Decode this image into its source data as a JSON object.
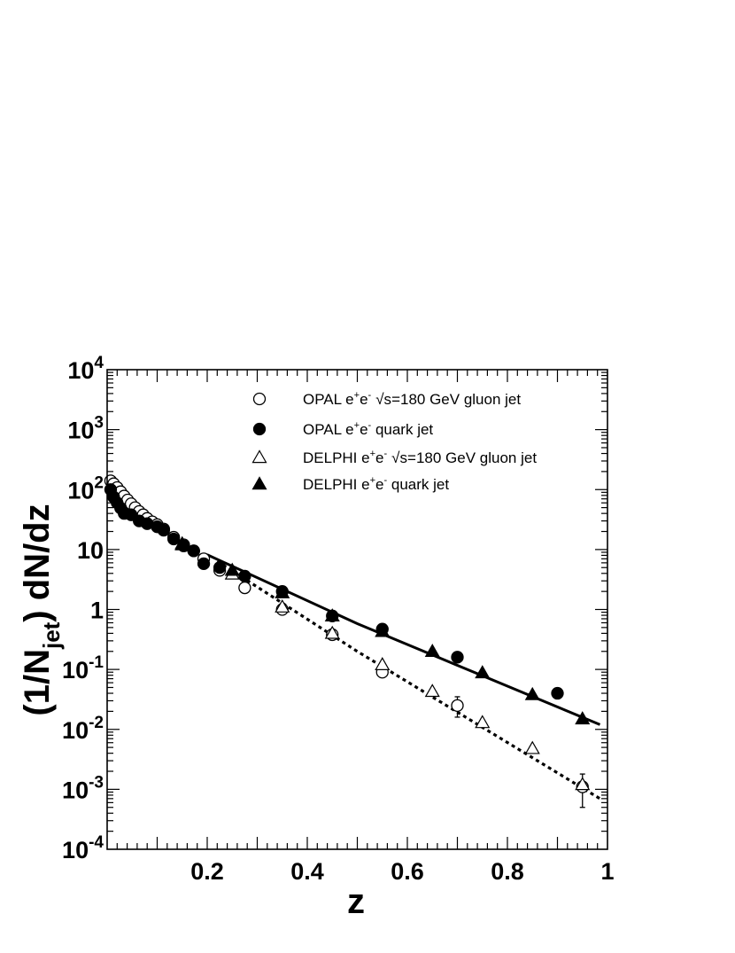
{
  "chart_data": {
    "type": "scatter",
    "title": "",
    "xlabel": "z",
    "ylabel_parts": {
      "a": "(1/N",
      "sub": "jet",
      "b": ") dN/dz"
    },
    "xlim": [
      0,
      1
    ],
    "ylim": [
      0.0001,
      10000
    ],
    "yscale": "log",
    "grid": false,
    "legend_position": "top-right",
    "x_ticks": [
      {
        "value": 0.2,
        "label": "0.2"
      },
      {
        "value": 0.4,
        "label": "0.4"
      },
      {
        "value": 0.6,
        "label": "0.6"
      },
      {
        "value": 0.8,
        "label": "0.8"
      },
      {
        "value": 1.0,
        "label": "1"
      }
    ],
    "y_ticks": [
      {
        "value": 10000,
        "base": "10",
        "exp": "4"
      },
      {
        "value": 1000,
        "base": "10",
        "exp": "3"
      },
      {
        "value": 100,
        "base": "10",
        "exp": "2"
      },
      {
        "value": 10,
        "base": "10",
        "exp": ""
      },
      {
        "value": 1,
        "base": "1",
        "exp": ""
      },
      {
        "value": 0.1,
        "base": "10",
        "exp": "-1"
      },
      {
        "value": 0.01,
        "base": "10",
        "exp": "-2"
      },
      {
        "value": 0.001,
        "base": "10",
        "exp": "-3"
      },
      {
        "value": 0.0001,
        "base": "10",
        "exp": "-4"
      }
    ],
    "series": [
      {
        "name": "OPAL e+e- √s=180 GeV gluon jet",
        "legend": {
          "exp": "OPAL e",
          "sup1": "+",
          "mid": "e",
          "sup2": "-",
          "sqrt": "√s",
          "rest": "=180 GeV gluon jet"
        },
        "marker": "open-circle",
        "points": [
          [
            0.007,
            140
          ],
          [
            0.013,
            125
          ],
          [
            0.02,
            108
          ],
          [
            0.027,
            92
          ],
          [
            0.034,
            78
          ],
          [
            0.041,
            67
          ],
          [
            0.048,
            58
          ],
          [
            0.056,
            50
          ],
          [
            0.064,
            43
          ],
          [
            0.072,
            38
          ],
          [
            0.08,
            33
          ],
          [
            0.09,
            29
          ],
          [
            0.1,
            26
          ],
          [
            0.113,
            22
          ],
          [
            0.133,
            16
          ],
          [
            0.153,
            12
          ],
          [
            0.173,
            9.5
          ],
          [
            0.193,
            7
          ],
          [
            0.225,
            4.5
          ],
          [
            0.275,
            2.3
          ],
          [
            0.35,
            1.0
          ],
          [
            0.45,
            0.38
          ],
          [
            0.55,
            0.09
          ],
          [
            0.7,
            0.025
          ],
          [
            0.95,
            0.0011
          ]
        ],
        "err_hi": {
          "0.7": 0.035,
          "0.95": 0.0018
        },
        "err_lo": {
          "0.7": 0.016,
          "0.95": 0.0005
        }
      },
      {
        "name": "OPAL e+e- quark jet",
        "legend": {
          "exp": "OPAL e",
          "sup1": "+",
          "mid": "e",
          "sup2": "-",
          "sqrt": "",
          "rest": " quark jet"
        },
        "marker": "filled-circle",
        "points": [
          [
            0.007,
            100
          ],
          [
            0.013,
            75
          ],
          [
            0.02,
            60
          ],
          [
            0.027,
            49
          ],
          [
            0.034,
            40
          ],
          [
            0.048,
            38
          ],
          [
            0.064,
            30
          ],
          [
            0.08,
            27
          ],
          [
            0.1,
            24
          ],
          [
            0.113,
            21
          ],
          [
            0.133,
            15
          ],
          [
            0.153,
            11.5
          ],
          [
            0.173,
            9.5
          ],
          [
            0.193,
            5.8
          ],
          [
            0.225,
            5
          ],
          [
            0.275,
            3.6
          ],
          [
            0.35,
            2.0
          ],
          [
            0.45,
            0.78
          ],
          [
            0.55,
            0.47
          ],
          [
            0.7,
            0.16
          ],
          [
            0.9,
            0.04
          ]
        ],
        "err_hi": {
          "0.9": 0.048
        },
        "err_lo": {
          "0.9": 0.033
        }
      },
      {
        "name": "DELPHI e+e- √s=180 GeV gluon jet",
        "legend": {
          "exp": "DELPHI e",
          "sup1": "+",
          "mid": "e",
          "sup2": "-",
          "sqrt": "√s",
          "rest": "=180 GeV gluon jet"
        },
        "marker": "open-triangle",
        "points": [
          [
            0.15,
            12
          ],
          [
            0.25,
            3.9
          ],
          [
            0.35,
            1.1
          ],
          [
            0.45,
            0.4
          ],
          [
            0.55,
            0.12
          ],
          [
            0.65,
            0.043
          ],
          [
            0.75,
            0.013
          ],
          [
            0.85,
            0.0048
          ],
          [
            0.95,
            0.0012
          ]
        ]
      },
      {
        "name": "DELPHI e+e- quark jet",
        "legend": {
          "exp": "DELPHI e",
          "sup1": "+",
          "mid": "e",
          "sup2": "-",
          "sqrt": "",
          "rest": " quark jet"
        },
        "marker": "filled-triangle",
        "points": [
          [
            0.15,
            12.5
          ],
          [
            0.25,
            4.5
          ],
          [
            0.35,
            1.9
          ],
          [
            0.45,
            0.78
          ],
          [
            0.55,
            0.43
          ],
          [
            0.65,
            0.2
          ],
          [
            0.75,
            0.088
          ],
          [
            0.85,
            0.038
          ],
          [
            0.95,
            0.015
          ]
        ]
      }
    ],
    "curves": [
      {
        "style": "solid",
        "points": [
          [
            0.2,
            8.2
          ],
          [
            0.5,
            0.58
          ],
          [
            0.985,
            0.012
          ]
        ]
      },
      {
        "style": "dotted",
        "points": [
          [
            0.22,
            6.4
          ],
          [
            0.5,
            0.2
          ],
          [
            0.985,
            0.0007
          ]
        ]
      }
    ]
  }
}
